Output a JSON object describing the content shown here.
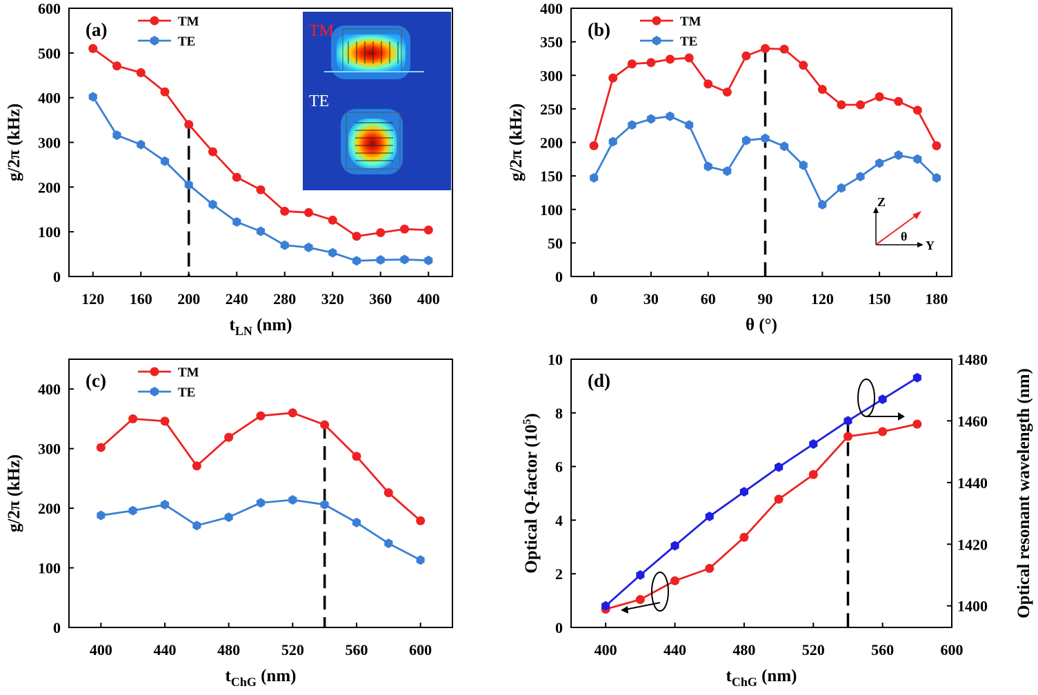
{
  "chart_data": [
    {
      "type": "line",
      "panel": "(a)",
      "xlabel": "t",
      "xlabel_sub": "LN",
      "xlabel_unit": " (nm)",
      "ylabel": "g/2π (kHz)",
      "xlim": [
        100,
        420
      ],
      "ylim": [
        0,
        600
      ],
      "xticks": [
        120,
        160,
        200,
        240,
        280,
        320,
        360,
        400
      ],
      "yticks": [
        0,
        100,
        200,
        300,
        400,
        500,
        600
      ],
      "x": [
        120,
        140,
        160,
        180,
        200,
        220,
        240,
        260,
        280,
        300,
        320,
        340,
        360,
        380,
        400
      ],
      "series": [
        {
          "name": "TM",
          "color": "#ee2222",
          "marker": "circle",
          "values": [
            510,
            471,
            456,
            413,
            340,
            279,
            222,
            194,
            146,
            143,
            126,
            90,
            98,
            106,
            104
          ]
        },
        {
          "name": "TE",
          "color": "#3a7fd5",
          "marker": "hexagon",
          "values": [
            402,
            316,
            295,
            258,
            205,
            161,
            122,
            101,
            70,
            65,
            53,
            35,
            37,
            38,
            36
          ]
        }
      ],
      "dashed_x": 200,
      "legend": "top-left",
      "inset": {
        "label_top": "TM",
        "label_bottom": "TE",
        "label_top_color": "#ff2020",
        "label_bottom_color": "#ffffff"
      }
    },
    {
      "type": "line",
      "panel": "(b)",
      "xlabel": "θ (°)",
      "ylabel": "g/2π (kHz)",
      "xlim": [
        -12,
        188
      ],
      "ylim": [
        0,
        400
      ],
      "xticks": [
        0,
        30,
        60,
        90,
        120,
        150,
        180
      ],
      "yticks": [
        0,
        50,
        100,
        150,
        200,
        250,
        300,
        350,
        400
      ],
      "x": [
        0,
        10,
        20,
        30,
        40,
        50,
        60,
        70,
        80,
        90,
        100,
        110,
        120,
        130,
        140,
        150,
        160,
        170,
        180
      ],
      "series": [
        {
          "name": "TM",
          "color": "#ee2222",
          "marker": "circle",
          "values": [
            195,
            296,
            317,
            319,
            324,
            326,
            287,
            275,
            329,
            340,
            339,
            315,
            279,
            256,
            256,
            268,
            261,
            248,
            195
          ]
        },
        {
          "name": "TE",
          "color": "#3a7fd5",
          "marker": "hexagon",
          "values": [
            147,
            201,
            226,
            235,
            239,
            226,
            164,
            157,
            203,
            206,
            194,
            166,
            107,
            132,
            149,
            169,
            181,
            175,
            147
          ]
        }
      ],
      "dashed_x": 90,
      "legend": "top-left",
      "axes_glyph": {
        "z": "Z",
        "y": "Y",
        "theta": "θ",
        "arrow_color": "#ee2222"
      }
    },
    {
      "type": "line",
      "panel": "(c)",
      "xlabel": "t",
      "xlabel_sub": "ChG",
      "xlabel_unit": " (nm)",
      "ylabel": "g/2π (kHz)",
      "xlim": [
        380,
        620
      ],
      "ylim": [
        0,
        450
      ],
      "xticks": [
        400,
        440,
        480,
        520,
        560,
        600
      ],
      "yticks": [
        0,
        100,
        200,
        300,
        400
      ],
      "x": [
        400,
        420,
        440,
        460,
        480,
        500,
        520,
        540,
        560,
        580,
        600
      ],
      "series": [
        {
          "name": "TM",
          "color": "#ee2222",
          "marker": "circle",
          "values": [
            302,
            350,
            346,
            271,
            319,
            355,
            360,
            340,
            287,
            226,
            179
          ]
        },
        {
          "name": "TE",
          "color": "#3a7fd5",
          "marker": "hexagon",
          "values": [
            188,
            196,
            206,
            171,
            185,
            209,
            214,
            206,
            176,
            141,
            113
          ]
        }
      ],
      "dashed_x": 540,
      "legend": "top-left"
    },
    {
      "type": "line",
      "panel": "(d)",
      "xlabel": "t",
      "xlabel_sub": "ChG",
      "xlabel_unit": " (nm)",
      "ylabel": "Optical Q-factor (10",
      "ylabel_sup": "5",
      "ylabel_end": ")",
      "y2label": "Optical resonant wavelength (nm)",
      "xlim": [
        380,
        600
      ],
      "ylim": [
        0,
        10
      ],
      "y2lim": [
        1393,
        1480
      ],
      "xticks": [
        400,
        440,
        480,
        520,
        560,
        600
      ],
      "yticks": [
        0,
        2,
        4,
        6,
        8,
        10
      ],
      "y2ticks": [
        1400,
        1420,
        1440,
        1460,
        1480
      ],
      "x": [
        400,
        420,
        440,
        460,
        480,
        500,
        520,
        540,
        560,
        580
      ],
      "series": [
        {
          "name": "Q-factor",
          "axis": "left",
          "color": "#ee2222",
          "marker": "circle",
          "values": [
            0.68,
            1.04,
            1.74,
            2.2,
            3.36,
            4.78,
            5.7,
            7.12,
            7.3,
            7.58
          ]
        },
        {
          "name": "Resonant wavelength",
          "axis": "right",
          "color": "#1f1fe0",
          "marker": "hexagon",
          "values": [
            1400,
            1410,
            1419.5,
            1429,
            1437,
            1445,
            1452.5,
            1460,
            1467,
            1474
          ]
        }
      ],
      "dashed_x": 540
    }
  ]
}
